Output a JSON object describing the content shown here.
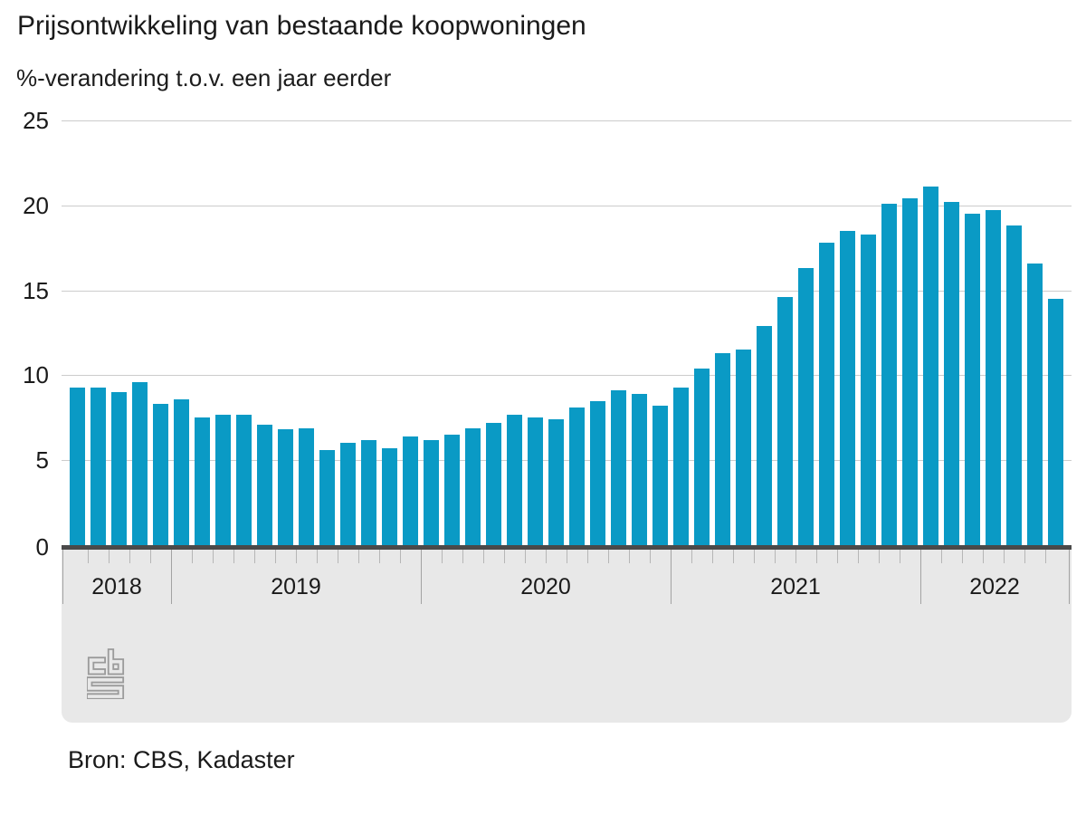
{
  "header": {
    "title": "Prijsontwikkeling van bestaande koopwoningen",
    "subtitle": "%-verandering t.o.v. een jaar eerder"
  },
  "source_note": "Bron: CBS, Kadaster",
  "colors": {
    "bar": "#0a9ac5",
    "grid": "#cccccc",
    "zero_axis": "#4a4a4a",
    "band": "#e8e8e8",
    "month_tick": "#b6b6b6",
    "year_divider": "#a3a3a3",
    "text": "#1a1a1a",
    "logo": "#9b9b9b"
  },
  "chart_data": {
    "type": "bar",
    "title": "Prijsontwikkeling van bestaande koopwoningen",
    "subtitle": "%-verandering t.o.v. een jaar eerder",
    "unit": "%",
    "ylim": [
      0,
      25
    ],
    "y_ticks": [
      0,
      5,
      10,
      15,
      20,
      25
    ],
    "grid": true,
    "legend": false,
    "x": [
      "2018-08",
      "2018-09",
      "2018-10",
      "2018-11",
      "2018-12",
      "2019-01",
      "2019-02",
      "2019-03",
      "2019-04",
      "2019-05",
      "2019-06",
      "2019-07",
      "2019-08",
      "2019-09",
      "2019-10",
      "2019-11",
      "2019-12",
      "2020-01",
      "2020-02",
      "2020-03",
      "2020-04",
      "2020-05",
      "2020-06",
      "2020-07",
      "2020-08",
      "2020-09",
      "2020-10",
      "2020-11",
      "2020-12",
      "2021-01",
      "2021-02",
      "2021-03",
      "2021-04",
      "2021-05",
      "2021-06",
      "2021-07",
      "2021-08",
      "2021-09",
      "2021-10",
      "2021-11",
      "2021-12",
      "2022-01",
      "2022-02",
      "2022-03",
      "2022-04",
      "2022-05",
      "2022-06",
      "2022-07"
    ],
    "values": [
      9.3,
      9.3,
      9.0,
      9.6,
      8.3,
      8.6,
      7.5,
      7.7,
      7.7,
      7.1,
      6.8,
      6.9,
      5.6,
      6.0,
      6.2,
      5.7,
      6.4,
      6.2,
      6.5,
      6.9,
      7.2,
      7.7,
      7.5,
      7.4,
      8.1,
      8.5,
      9.1,
      8.9,
      8.2,
      9.3,
      10.4,
      11.3,
      11.5,
      12.9,
      14.6,
      16.3,
      17.8,
      18.5,
      18.3,
      20.1,
      20.4,
      21.1,
      20.2,
      19.5,
      19.7,
      18.8,
      16.6,
      14.5
    ],
    "year_groups": [
      {
        "label": "2018",
        "months": 5
      },
      {
        "label": "2019",
        "months": 12
      },
      {
        "label": "2020",
        "months": 12
      },
      {
        "label": "2021",
        "months": 12
      },
      {
        "label": "2022",
        "months": 7
      }
    ],
    "source": "Bron: CBS, Kadaster"
  }
}
